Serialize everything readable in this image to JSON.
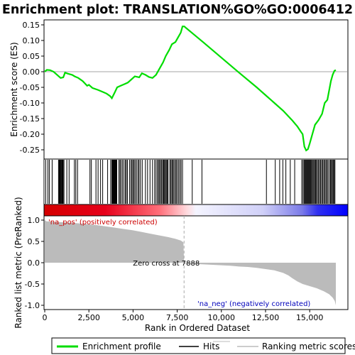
{
  "chart_data": {
    "type": "line",
    "title": "Enrichment plot: TRANSLATION%GO%GO:0006412",
    "xlabel": "Rank in Ordered Dataset",
    "ylabel_top": "Enrichment score (ES)",
    "ylabel_bottom": "Ranked list metric (PreRanked)",
    "xlim": [
      0,
      16500
    ],
    "x_ticks": [
      0,
      2500,
      5000,
      7500,
      10000,
      12500,
      15000
    ],
    "x_tick_labels": [
      "0",
      "2,500",
      "5,000",
      "7,500",
      "10,000",
      "12,500",
      "15,000"
    ],
    "es_ylim": [
      -0.28,
      0.16
    ],
    "es_ticks": [
      -0.25,
      -0.2,
      -0.15,
      -0.1,
      -0.05,
      0.0,
      0.05,
      0.1,
      0.15
    ],
    "es_tick_labels": [
      "-0.25",
      "-0.20",
      "-0.15",
      "-0.10",
      "-0.05",
      "0.00",
      "0.05",
      "0.10",
      "0.15"
    ],
    "metric_ylim": [
      -1.1,
      1.1
    ],
    "metric_ticks": [
      -1.0,
      -0.5,
      0.0,
      0.5,
      1.0
    ],
    "metric_tick_labels": [
      "-1.0",
      "-0.5",
      "0.0",
      "0.5",
      "1.0"
    ],
    "enrichment_profile": [
      [
        0,
        0.0
      ],
      [
        120,
        0.006
      ],
      [
        300,
        0.005
      ],
      [
        500,
        0.0
      ],
      [
        700,
        -0.01
      ],
      [
        900,
        -0.02
      ],
      [
        1050,
        -0.018
      ],
      [
        1150,
        -0.003
      ],
      [
        1300,
        -0.006
      ],
      [
        1550,
        -0.01
      ],
      [
        1700,
        -0.015
      ],
      [
        1900,
        -0.02
      ],
      [
        2150,
        -0.03
      ],
      [
        2400,
        -0.045
      ],
      [
        2500,
        -0.042
      ],
      [
        2700,
        -0.052
      ],
      [
        3000,
        -0.058
      ],
      [
        3300,
        -0.065
      ],
      [
        3500,
        -0.07
      ],
      [
        3700,
        -0.078
      ],
      [
        3800,
        -0.085
      ],
      [
        3950,
        -0.068
      ],
      [
        4100,
        -0.05
      ],
      [
        4300,
        -0.045
      ],
      [
        4500,
        -0.04
      ],
      [
        4700,
        -0.035
      ],
      [
        4900,
        -0.025
      ],
      [
        5100,
        -0.015
      ],
      [
        5350,
        -0.018
      ],
      [
        5500,
        -0.005
      ],
      [
        5700,
        -0.01
      ],
      [
        5900,
        -0.017
      ],
      [
        6100,
        -0.02
      ],
      [
        6300,
        -0.01
      ],
      [
        6500,
        0.01
      ],
      [
        6700,
        0.03
      ],
      [
        6850,
        0.05
      ],
      [
        7050,
        0.07
      ],
      [
        7200,
        0.088
      ],
      [
        7400,
        0.095
      ],
      [
        7550,
        0.11
      ],
      [
        7700,
        0.125
      ],
      [
        7800,
        0.145
      ],
      [
        7900,
        0.145
      ],
      [
        8000,
        0.14
      ],
      [
        8300,
        0.126
      ],
      [
        9000,
        0.093
      ],
      [
        10000,
        0.045
      ],
      [
        11000,
        -0.003
      ],
      [
        12000,
        -0.05
      ],
      [
        12500,
        -0.075
      ],
      [
        13000,
        -0.1
      ],
      [
        13500,
        -0.125
      ],
      [
        14000,
        -0.155
      ],
      [
        14300,
        -0.175
      ],
      [
        14500,
        -0.192
      ],
      [
        14600,
        -0.2
      ],
      [
        14700,
        -0.24
      ],
      [
        14800,
        -0.252
      ],
      [
        14900,
        -0.248
      ],
      [
        15000,
        -0.23
      ],
      [
        15150,
        -0.2
      ],
      [
        15300,
        -0.17
      ],
      [
        15500,
        -0.155
      ],
      [
        15700,
        -0.135
      ],
      [
        15850,
        -0.1
      ],
      [
        16000,
        -0.09
      ],
      [
        16100,
        -0.06
      ],
      [
        16200,
        -0.03
      ],
      [
        16300,
        -0.01
      ],
      [
        16400,
        0.003
      ],
      [
        16480,
        0.005
      ]
    ],
    "hit_ranks": [
      60,
      180,
      260,
      420,
      780,
      820,
      850,
      880,
      900,
      940,
      980,
      1010,
      1040,
      1090,
      1250,
      1380,
      1680,
      1760,
      1860,
      2560,
      2640,
      2900,
      3020,
      3160,
      3280,
      3560,
      3730,
      3800,
      3840,
      3870,
      3900,
      3930,
      3960,
      3990,
      4020,
      4050,
      4080,
      4200,
      4260,
      4320,
      4400,
      4480,
      4560,
      4620,
      4680,
      4800,
      4880,
      4940,
      5000,
      5060,
      5120,
      5200,
      5280,
      5340,
      5420,
      5520,
      5700,
      5820,
      5960,
      6100,
      6220,
      6300,
      6380,
      6440,
      6500,
      6560,
      6620,
      6680,
      6730,
      6780,
      6830,
      6880,
      6930,
      6980,
      7080,
      7140,
      7200,
      7250,
      7310,
      7380,
      7440,
      7500,
      7580,
      7650,
      7720,
      7800,
      8350,
      8900,
      12550,
      13050,
      13300,
      13480,
      13650,
      13900,
      14150,
      14550,
      14620,
      14680,
      14720,
      14760,
      14800,
      14840,
      14880,
      14920,
      14960,
      15000,
      15040,
      15080,
      15120,
      15180,
      15230,
      15280,
      15330,
      15380,
      15440,
      15500,
      15560,
      15620,
      15680,
      15740,
      15800,
      15860,
      15920,
      15980,
      16040,
      16120,
      16180,
      16230,
      16280,
      16330,
      16380,
      16430
    ],
    "ranked_metric": [
      [
        0,
        1.0
      ],
      [
        100,
        0.97
      ],
      [
        500,
        0.96
      ],
      [
        1000,
        0.95
      ],
      [
        1500,
        0.94
      ],
      [
        2000,
        0.92
      ],
      [
        2500,
        0.9
      ],
      [
        3000,
        0.88
      ],
      [
        3500,
        0.85
      ],
      [
        4000,
        0.82
      ],
      [
        4500,
        0.79
      ],
      [
        5000,
        0.76
      ],
      [
        5500,
        0.72
      ],
      [
        6000,
        0.68
      ],
      [
        6500,
        0.64
      ],
      [
        7000,
        0.6
      ],
      [
        7400,
        0.56
      ],
      [
        7700,
        0.52
      ],
      [
        7850,
        0.48
      ],
      [
        7888,
        0.0
      ],
      [
        7950,
        -0.02
      ],
      [
        8500,
        -0.03
      ],
      [
        9000,
        -0.04
      ],
      [
        9500,
        -0.05
      ],
      [
        10000,
        -0.06
      ],
      [
        10500,
        -0.07
      ],
      [
        11000,
        -0.09
      ],
      [
        11500,
        -0.1
      ],
      [
        12000,
        -0.12
      ],
      [
        12500,
        -0.15
      ],
      [
        13000,
        -0.18
      ],
      [
        13500,
        -0.24
      ],
      [
        13800,
        -0.3
      ],
      [
        14000,
        -0.36
      ],
      [
        14300,
        -0.44
      ],
      [
        14600,
        -0.5
      ],
      [
        15000,
        -0.55
      ],
      [
        15400,
        -0.6
      ],
      [
        15800,
        -0.67
      ],
      [
        16100,
        -0.74
      ],
      [
        16300,
        -0.82
      ],
      [
        16420,
        -0.9
      ],
      [
        16480,
        -1.0
      ]
    ],
    "zero_cross_rank": 7888,
    "annotations": {
      "pos": "'na_pos' (positively correlated)",
      "neg": "'na_neg' (negatively correlated)",
      "zero_cross": "Zero cross at 7888"
    },
    "legend": [
      "Enrichment profile",
      "Hits",
      "Ranking metric scores"
    ],
    "colors": {
      "profile": "#00dd00",
      "hits": "#000000",
      "metric_fill": "#bbbbbb",
      "pos_text": "#cc0000",
      "neg_text": "#0000bb",
      "pos_band": "#e60000",
      "neg_band": "#0000ff",
      "mid_band": "#ffffff"
    }
  }
}
